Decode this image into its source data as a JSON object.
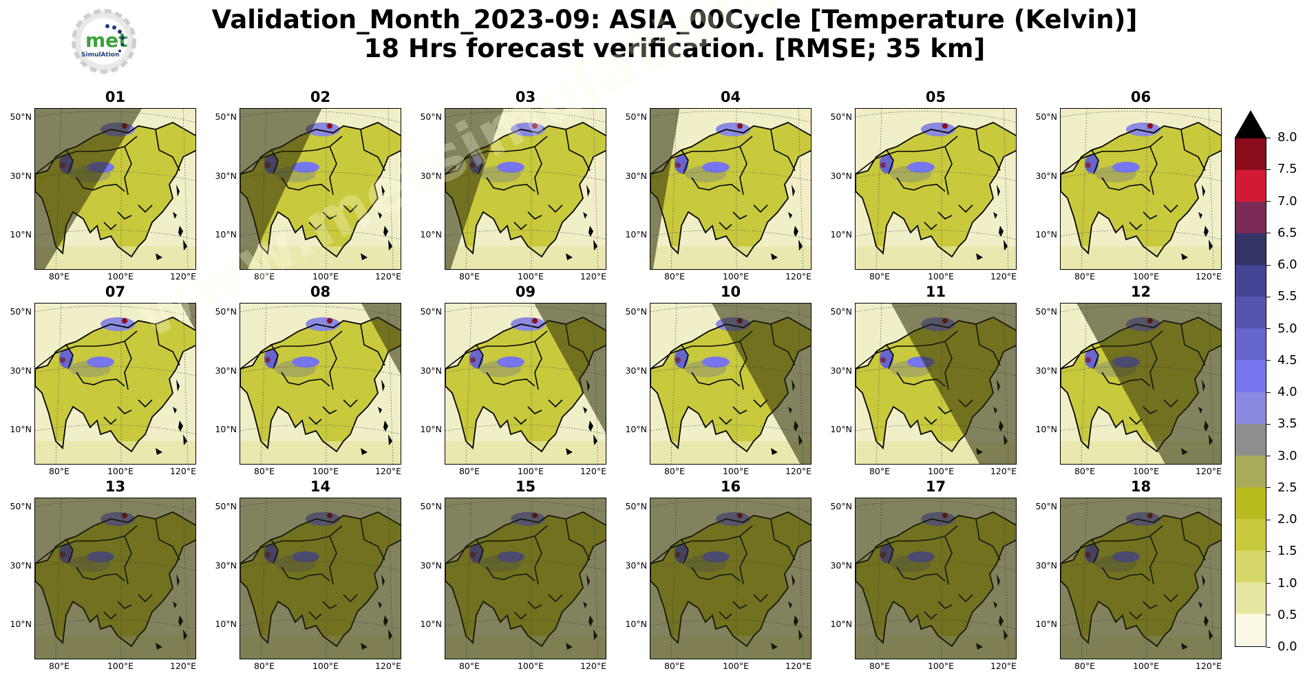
{
  "figure": {
    "title_line1": "Validation_Month_2023-09: ASIA_00Cycle [Temperature (Kelvin)]",
    "title_line2": "18 Hrs forecast verification.  [RMSE; 35 km]"
  },
  "logo": {
    "word": "met",
    "subword": "SimulAtion"
  },
  "watermark": "www.metsimulation.com",
  "map_axes": {
    "lat_labels": [
      "50°N",
      "30°N",
      "10°N"
    ],
    "lon_labels": [
      "80°E",
      "100°E",
      "120°E"
    ]
  },
  "panels": [
    {
      "label": "01",
      "shade": "left",
      "night": 0.55
    },
    {
      "label": "02",
      "shade": "left",
      "night": 0.42
    },
    {
      "label": "03",
      "shade": "left",
      "night": 0.3
    },
    {
      "label": "04",
      "shade": "left",
      "night": 0.15
    },
    {
      "label": "05",
      "shade": "none",
      "night": 0.0
    },
    {
      "label": "06",
      "shade": "none",
      "night": 0.0
    },
    {
      "label": "07",
      "shade": "right",
      "night": 0.1
    },
    {
      "label": "08",
      "shade": "right",
      "night": 0.25
    },
    {
      "label": "09",
      "shade": "right",
      "night": 0.45
    },
    {
      "label": "10",
      "shade": "right",
      "night": 0.62
    },
    {
      "label": "11",
      "shade": "right",
      "night": 0.78
    },
    {
      "label": "12",
      "shade": "right",
      "night": 0.9
    },
    {
      "label": "13",
      "shade": "full",
      "night": 0.97
    },
    {
      "label": "14",
      "shade": "full",
      "night": 1.0
    },
    {
      "label": "15",
      "shade": "full",
      "night": 1.0
    },
    {
      "label": "16",
      "shade": "full",
      "night": 1.0
    },
    {
      "label": "17",
      "shade": "full",
      "night": 1.0
    },
    {
      "label": "18",
      "shade": "full",
      "night": 1.0
    }
  ],
  "colorbar": {
    "ticks": [
      "0.0",
      "0.5",
      "1.0",
      "1.5",
      "2.0",
      "2.5",
      "3.0",
      "3.5",
      "4.0",
      "4.5",
      "5.0",
      "5.5",
      "6.0",
      "6.5",
      "7.0",
      "7.5",
      "8.0"
    ],
    "extend": "max",
    "colors": [
      "#fbf8e3",
      "#e6e6a3",
      "#d7d76a",
      "#c9c93d",
      "#babb1f",
      "#a8ab59",
      "#8e8e8e",
      "#8a8ae0",
      "#7676ee",
      "#6666cc",
      "#5555b0",
      "#444495",
      "#333366",
      "#7a2a55",
      "#d21a35",
      "#880c1c"
    ],
    "extend_color": "#000000"
  }
}
